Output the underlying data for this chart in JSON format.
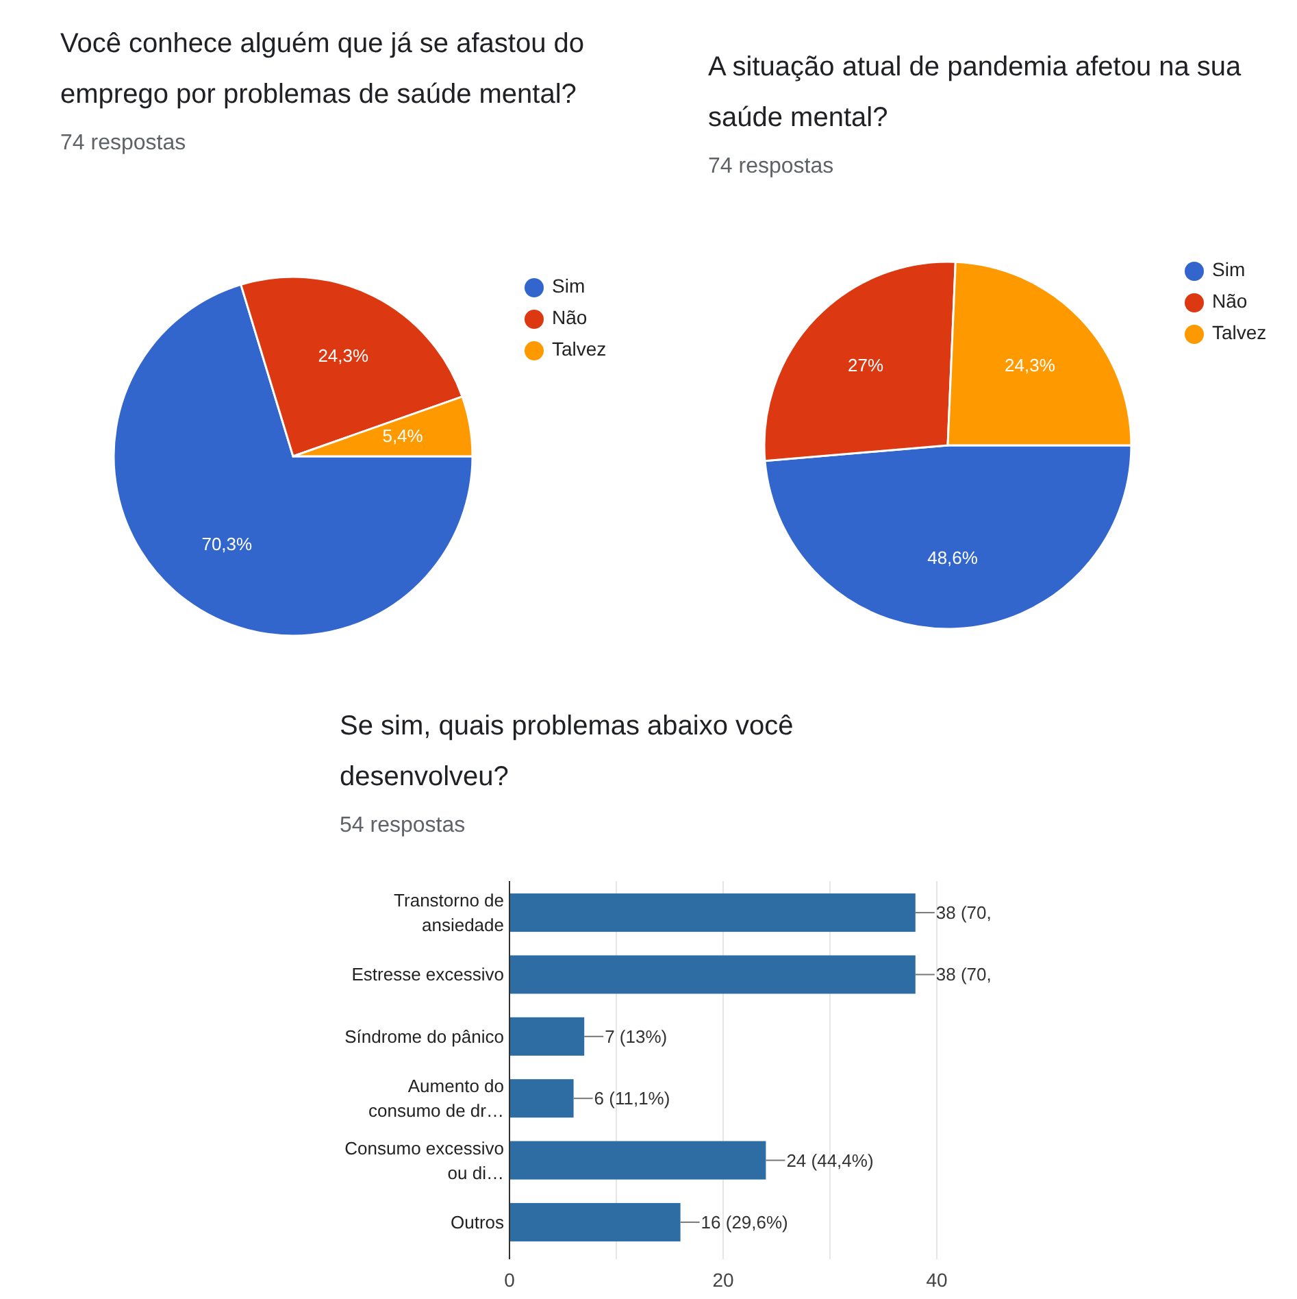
{
  "chart_data": [
    {
      "type": "pie",
      "title": "Você conhece alguém que já se afastou do emprego por problemas de saúde mental?",
      "subtitle": "74 respostas",
      "categories": [
        "Sim",
        "Não",
        "Talvez"
      ],
      "values": [
        70.3,
        24.3,
        5.4
      ],
      "colors": [
        "#3366cc",
        "#dc3912",
        "#ff9900"
      ],
      "value_labels": [
        "70,3%",
        "24,3%",
        "5,4%"
      ],
      "legend": "right"
    },
    {
      "type": "pie",
      "title": "A situação atual de pandemia afetou na sua saúde mental?",
      "subtitle": "74 respostas",
      "categories": [
        "Sim",
        "Não",
        "Talvez"
      ],
      "values": [
        48.6,
        27,
        24.3
      ],
      "colors": [
        "#3366cc",
        "#dc3912",
        "#ff9900"
      ],
      "value_labels": [
        "48,6%",
        "27%",
        "24,3%"
      ],
      "legend": "right"
    },
    {
      "type": "bar",
      "orientation": "horizontal",
      "title": "Se sim, quais problemas abaixo você desenvolveu?",
      "subtitle": "54 respostas",
      "categories": [
        "Transtorno de ansiedade",
        "Estresse excessivo",
        "Síndrome do pânico",
        "Aumento do consumo de dr…",
        "Consumo excessivo ou di…",
        "Outros"
      ],
      "values": [
        38,
        38,
        7,
        6,
        24,
        16
      ],
      "color": "#2e6da4",
      "value_labels": [
        "38 (70,",
        "38 (70,",
        "7 (13%)",
        "6 (11,1%)",
        "24 (44,4%)",
        "16 (29,6%)"
      ],
      "xlim": [
        0,
        40
      ],
      "xticks": [
        0,
        {
          "value": 10,
          "label": null
        },
        20,
        {
          "value": 30,
          "label": null
        },
        40
      ],
      "grid": "x"
    }
  ]
}
